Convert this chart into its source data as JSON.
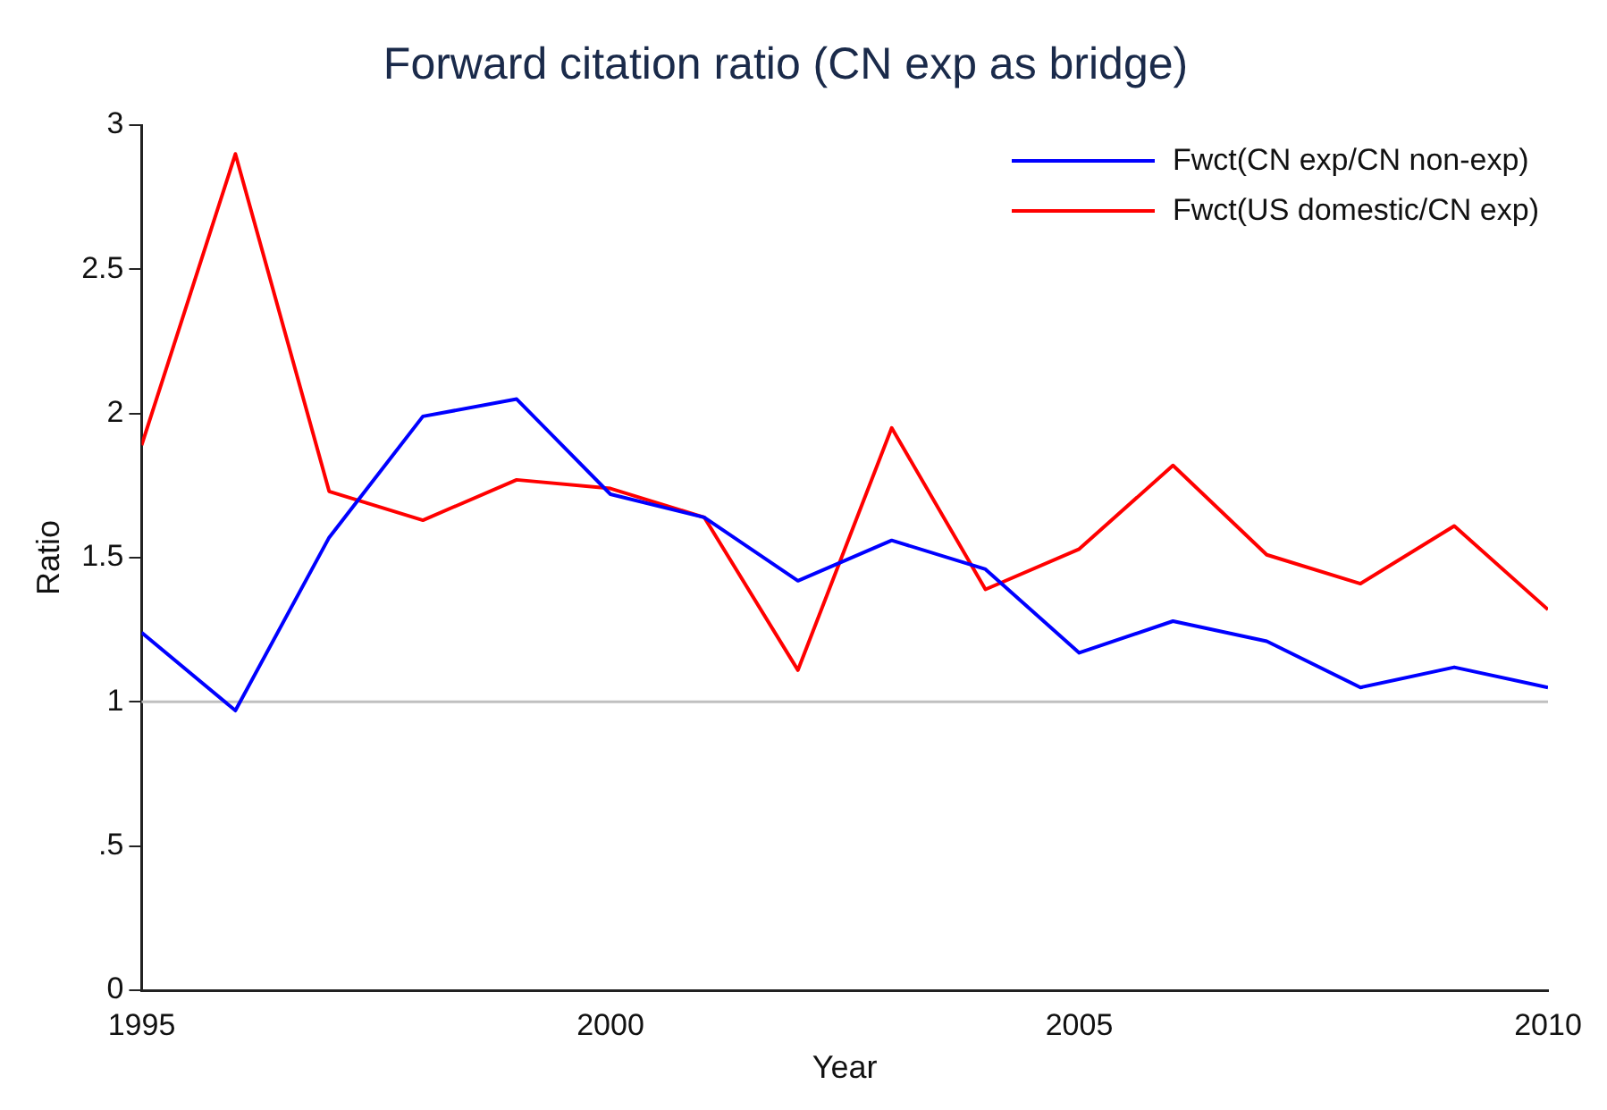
{
  "chart_data": {
    "type": "line",
    "title": "Forward citation ratio (CN exp as bridge)",
    "xlabel": "Year",
    "ylabel": "Ratio",
    "x": [
      1995,
      1996,
      1997,
      1998,
      1999,
      2000,
      2001,
      2002,
      2003,
      2004,
      2005,
      2006,
      2007,
      2008,
      2009,
      2010
    ],
    "series": [
      {
        "name": "Fwct(CN exp/CN non-exp)",
        "color": "#0000ff",
        "values": [
          1.24,
          0.97,
          1.57,
          1.99,
          2.05,
          1.72,
          1.64,
          1.42,
          1.56,
          1.46,
          1.17,
          1.28,
          1.21,
          1.05,
          1.12,
          1.05
        ]
      },
      {
        "name": "Fwct(US domestic/CN exp)",
        "color": "#ff0000",
        "values": [
          1.89,
          2.9,
          1.73,
          1.63,
          1.77,
          1.74,
          1.64,
          1.11,
          1.95,
          1.39,
          1.53,
          1.82,
          1.51,
          1.41,
          1.61,
          1.32
        ]
      }
    ],
    "xlim": [
      1995,
      2010
    ],
    "xticks": [
      1995,
      2000,
      2005,
      2010
    ],
    "ylim": [
      0,
      3
    ],
    "yticks": [
      0,
      {
        "value": 0.5,
        "label": ".5"
      },
      1,
      1.5,
      2,
      2.5,
      3
    ],
    "ref_lines": [
      {
        "axis": "y",
        "value": 1,
        "color": "#c0c0c0"
      }
    ],
    "grid": false,
    "legend": "top right",
    "marker": "none",
    "line_style": "solid"
  }
}
